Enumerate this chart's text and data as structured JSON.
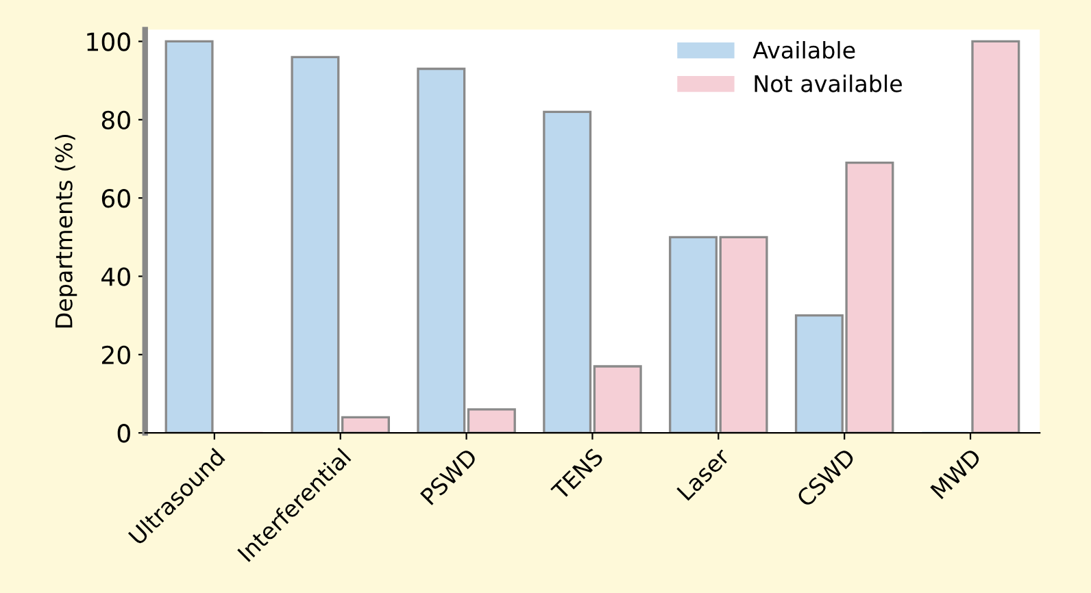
{
  "chart_data": {
    "type": "bar",
    "ylabel": "Departments (%)",
    "categories": [
      "Ultrasound",
      "Interferential",
      "PSWD",
      "TENS",
      "Laser",
      "CSWD",
      "MWD"
    ],
    "series": [
      {
        "name": "Available",
        "color": "#bcd8ee",
        "values": [
          100,
          96,
          93,
          82,
          50,
          30,
          0
        ]
      },
      {
        "name": "Not available",
        "color": "#f5cfd6",
        "values": [
          0,
          4,
          6,
          17,
          50,
          69,
          100
        ]
      }
    ],
    "ylim": [
      0,
      103
    ],
    "yticks": [
      0,
      20,
      40,
      60,
      80,
      100
    ],
    "grid": false,
    "legend": "top right"
  }
}
